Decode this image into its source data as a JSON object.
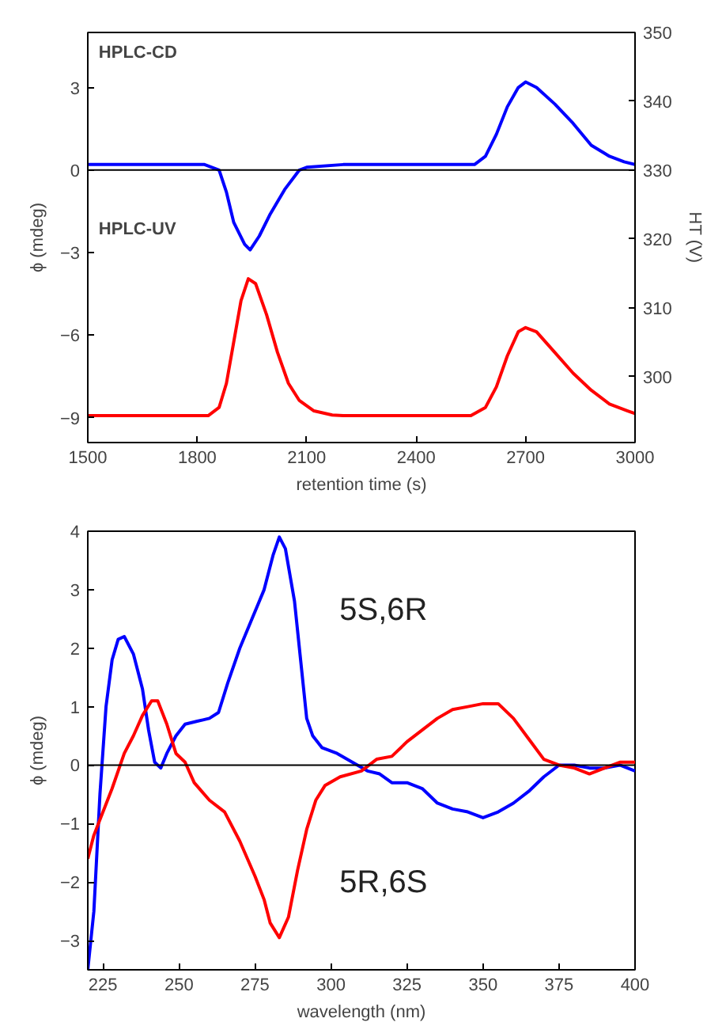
{
  "chart_data": [
    {
      "type": "line",
      "xlabel": "retention time (s)",
      "ylabel": "ϕ (mdeg)",
      "y2label": "HT (V)",
      "xlim": [
        1500,
        3000
      ],
      "xticks": [
        1500,
        1800,
        2100,
        2400,
        2700,
        3000
      ],
      "ylim": [
        -9.9,
        5
      ],
      "yticks": [
        -9,
        -6,
        -3,
        0,
        3
      ],
      "y2lim": [
        290.4,
        350
      ],
      "y2ticks": [
        300,
        310,
        320,
        330,
        340,
        350
      ],
      "grid": false,
      "ref_lines": [
        {
          "axis": "y",
          "value": 0,
          "color": "#000000"
        }
      ],
      "annotations": [
        "HPLC-CD",
        "HPLC-UV"
      ],
      "series": [
        {
          "color": "#0000ff",
          "x": [
            1500,
            1600,
            1700,
            1820,
            1860,
            1880,
            1900,
            1930,
            1945,
            1970,
            2000,
            2040,
            2080,
            2100,
            2200,
            2300,
            2400,
            2500,
            2560,
            2590,
            2620,
            2650,
            2680,
            2700,
            2730,
            2780,
            2830,
            2880,
            2930,
            2970,
            3000
          ],
          "values": [
            0.2,
            0.2,
            0.2,
            0.2,
            0,
            -0.8,
            -1.9,
            -2.7,
            -2.9,
            -2.4,
            -1.6,
            -0.7,
            0,
            0.1,
            0.2,
            0.2,
            0.2,
            0.2,
            0.2,
            0.5,
            1.3,
            2.3,
            3.0,
            3.2,
            3.0,
            2.4,
            1.7,
            0.9,
            0.5,
            0.3,
            0.2
          ]
        },
        {
          "color": "#ff0000",
          "axis": "y2",
          "x": [
            1500,
            1830,
            1860,
            1880,
            1900,
            1920,
            1940,
            1960,
            1990,
            2020,
            2050,
            2080,
            2120,
            2170,
            2200,
            2550,
            2590,
            2620,
            2650,
            2680,
            2700,
            2730,
            2780,
            2830,
            2880,
            2930,
            2980,
            3000
          ],
          "values": [
            294.3,
            294.3,
            295.5,
            299,
            305,
            311,
            314.2,
            313.5,
            309,
            303.5,
            299,
            296.5,
            295,
            294.4,
            294.3,
            294.3,
            295.5,
            298.5,
            303,
            306.5,
            307.1,
            306.5,
            303.5,
            300.5,
            298,
            296,
            295,
            294.6
          ]
        }
      ]
    },
    {
      "type": "line",
      "xlabel": "wavelength (nm)",
      "ylabel": "ϕ (mdeg)",
      "xlim": [
        220,
        400
      ],
      "xticks": [
        225,
        250,
        275,
        300,
        325,
        350,
        375,
        400
      ],
      "ylim": [
        -3.5,
        4
      ],
      "yticks": [
        -3,
        -2,
        -1,
        0,
        1,
        2,
        3,
        4
      ],
      "grid": false,
      "ref_lines": [
        {
          "axis": "y",
          "value": 0,
          "color": "#000000"
        }
      ],
      "series": [
        {
          "name": "5S,6R",
          "color": "#0000ff",
          "x": [
            220,
            222,
            224,
            226,
            228,
            230,
            232,
            235,
            238,
            240,
            242,
            244,
            246,
            249,
            252,
            256,
            260,
            263,
            266,
            270,
            274,
            278,
            281,
            283,
            285,
            288,
            290,
            292,
            294,
            297,
            302,
            307,
            312,
            316,
            320,
            325,
            330,
            335,
            340,
            345,
            350,
            355,
            360,
            365,
            370,
            375,
            380,
            385,
            390,
            395,
            400
          ],
          "values": [
            -3.5,
            -2.5,
            -0.5,
            1.0,
            1.8,
            2.15,
            2.2,
            1.9,
            1.3,
            0.6,
            0.05,
            -0.05,
            0.2,
            0.5,
            0.7,
            0.75,
            0.8,
            0.9,
            1.4,
            2.0,
            2.5,
            3.0,
            3.6,
            3.9,
            3.7,
            2.8,
            1.8,
            0.8,
            0.5,
            0.3,
            0.2,
            0.05,
            -0.1,
            -0.15,
            -0.3,
            -0.3,
            -0.4,
            -0.65,
            -0.75,
            -0.8,
            -0.9,
            -0.8,
            -0.65,
            -0.45,
            -0.2,
            0,
            0,
            -0.05,
            -0.05,
            0,
            -0.1
          ]
        },
        {
          "name": "5R,6S",
          "color": "#ff0000",
          "x": [
            220,
            222,
            225,
            228,
            232,
            235,
            238,
            241,
            243,
            246,
            249,
            252,
            255,
            260,
            265,
            270,
            275,
            278,
            280,
            283,
            286,
            289,
            292,
            295,
            298,
            303,
            310,
            315,
            320,
            325,
            330,
            335,
            340,
            345,
            350,
            355,
            360,
            365,
            370,
            375,
            380,
            385,
            390,
            395,
            400
          ],
          "values": [
            -1.6,
            -1.2,
            -0.8,
            -0.4,
            0.2,
            0.5,
            0.85,
            1.1,
            1.1,
            0.7,
            0.2,
            0.05,
            -0.3,
            -0.6,
            -0.8,
            -1.3,
            -1.9,
            -2.3,
            -2.7,
            -2.95,
            -2.6,
            -1.8,
            -1.1,
            -0.6,
            -0.35,
            -0.2,
            -0.1,
            0.1,
            0.15,
            0.4,
            0.6,
            0.8,
            0.95,
            1.0,
            1.05,
            1.05,
            0.8,
            0.45,
            0.1,
            0,
            -0.05,
            -0.15,
            -0.05,
            0.05,
            0.05
          ]
        }
      ]
    }
  ]
}
